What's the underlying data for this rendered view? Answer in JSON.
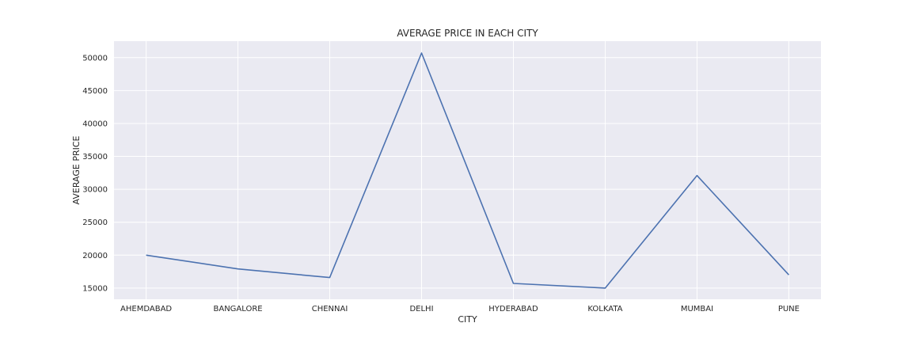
{
  "chart_data": {
    "type": "line",
    "title": "AVERAGE PRICE IN EACH CITY",
    "xlabel": "CITY",
    "ylabel": "AVERAGE PRICE",
    "categories": [
      "AHEMDABAD",
      "BANGALORE",
      "CHENNAI",
      "DELHI",
      "HYDERABAD",
      "KOLKATA",
      "MUMBAI",
      "PUNE"
    ],
    "series": [
      {
        "values": [
          20000,
          17900,
          16600,
          50700,
          15700,
          15000,
          32100,
          17000
        ]
      }
    ],
    "y_ticks": [
      15000,
      20000,
      25000,
      30000,
      35000,
      40000,
      45000,
      50000
    ],
    "ylim": [
      13300,
      52500
    ],
    "grid": true,
    "legend": "none",
    "colors": {
      "plot_background": "#eaeaf2",
      "grid": "#ffffff",
      "line": "#4c72b0",
      "text": "#262626"
    }
  }
}
